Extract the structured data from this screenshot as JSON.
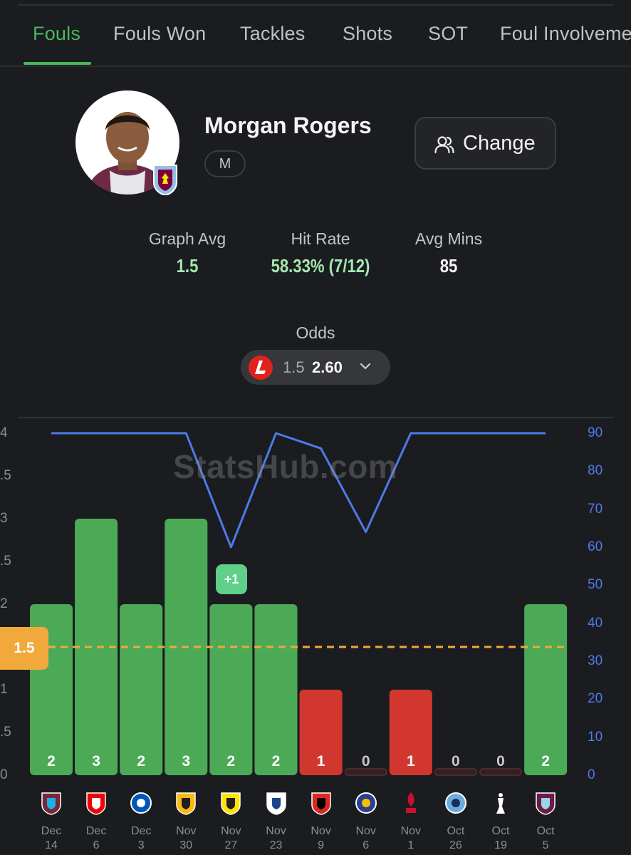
{
  "tabs": [
    "Fouls",
    "Fouls Won",
    "Tackles",
    "Shots",
    "SOT",
    "Foul Involveme"
  ],
  "active_tab": "Fouls",
  "player": {
    "name": "Morgan Rogers",
    "position": "M"
  },
  "change_button": {
    "label": "Change",
    "icon": "users-icon"
  },
  "stats": {
    "graph_avg": {
      "label": "Graph Avg",
      "value": "1.5"
    },
    "hit_rate": {
      "label": "Hit Rate",
      "value": "58.33% (7/12)"
    },
    "avg_mins": {
      "label": "Avg Mins",
      "value": "85"
    }
  },
  "odds": {
    "label": "Odds",
    "line": "1.5",
    "price": "2.60",
    "bookmaker_icon": "ladbrokes-logo-icon"
  },
  "watermark": "StatsHub.com",
  "line_badge": "1.5",
  "plus_badge": "+1",
  "colors": {
    "accent_green": "#49b85a",
    "bar_hit": "#4caa57",
    "bar_miss": "#d2372f",
    "minutes_line": "#4e7ae8",
    "threshold": "#f0a93a"
  },
  "chart_data": {
    "type": "bar",
    "categories": [
      "Dec 14",
      "Dec 6",
      "Dec 3",
      "Nov 30",
      "Nov 27",
      "Nov 23",
      "Nov 9",
      "Nov 6",
      "Nov 1",
      "Oct 26",
      "Oct 19",
      "Oct 5"
    ],
    "dates": [
      [
        "Dec",
        "14"
      ],
      [
        "Dec",
        "6"
      ],
      [
        "Dec",
        "3"
      ],
      [
        "Nov",
        "30"
      ],
      [
        "Nov",
        "27"
      ],
      [
        "Nov",
        "23"
      ],
      [
        "Nov",
        "9"
      ],
      [
        "Nov",
        "6"
      ],
      [
        "Nov",
        "1"
      ],
      [
        "Oct",
        "26"
      ],
      [
        "Oct",
        "19"
      ],
      [
        "Oct",
        "5"
      ]
    ],
    "opponents_icons": [
      "west-ham-crest-icon",
      "arsenal-crest-icon",
      "brighton-crest-icon",
      "wolves-crest-icon",
      "young-boys-crest-icon",
      "leeds-crest-icon",
      "bournemouth-crest-icon",
      "maccabi-tel-aviv-crest-icon",
      "liverpool-crest-icon",
      "manchester-city-crest-icon",
      "tottenham-crest-icon",
      "burnley-crest-icon"
    ],
    "series": [
      {
        "values": [
          2,
          3,
          2,
          3,
          2,
          2,
          1,
          0,
          1,
          0,
          0,
          2
        ]
      },
      {
        "values": [
          90,
          90,
          90,
          90,
          60,
          90,
          86,
          64,
          90,
          90,
          90,
          90
        ]
      }
    ],
    "threshold": 1.5,
    "y_left_ticks": [
      "4",
      ".5",
      "3",
      ".5",
      "2",
      "",
      "1",
      ".5",
      "0"
    ],
    "y_left_range": [
      0,
      4
    ],
    "y_right_ticks": [
      "90",
      "80",
      "70",
      "60",
      "50",
      "40",
      "30",
      "20",
      "10",
      "0"
    ],
    "y_right_range": [
      0,
      90
    ],
    "grid": false
  }
}
